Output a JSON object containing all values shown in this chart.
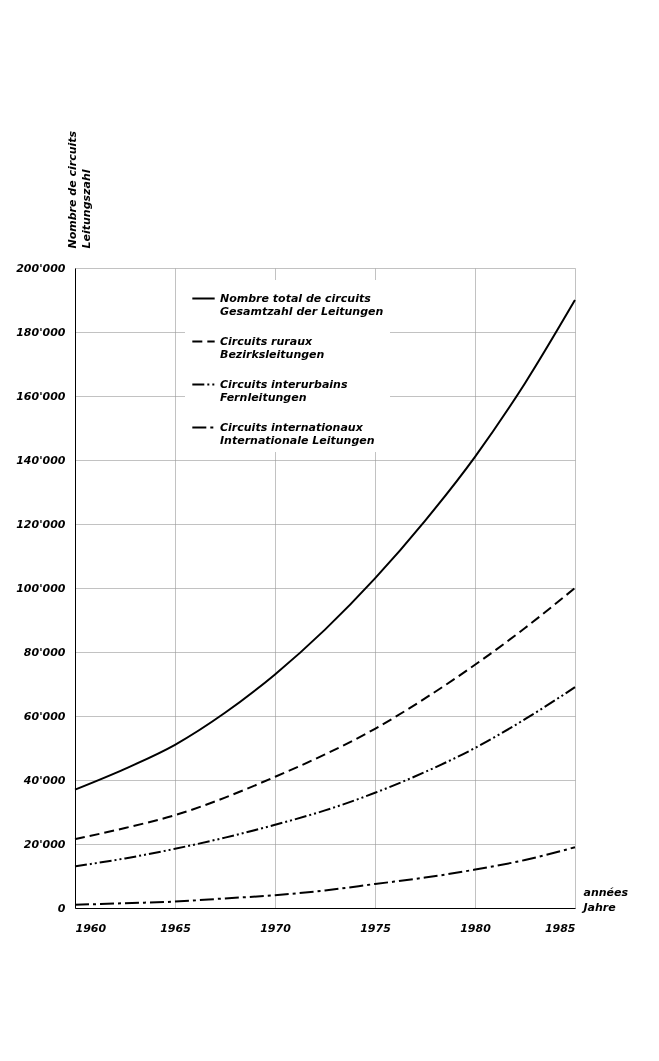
{
  "chart_data": {
    "type": "line",
    "xlabel": "années\nJahre",
    "ylabel": "Nombre de circuits\nLeitungszahl",
    "x": [
      1960,
      1962.5,
      1965,
      1967.5,
      1970,
      1972.5,
      1975,
      1977.5,
      1980,
      1982.5,
      1985
    ],
    "series": [
      {
        "name": "Nombre total de circuits\nGesamtzahl der Leitungen",
        "color": "#000000",
        "line_style": "solid",
        "values": [
          37000,
          43500,
          51000,
          61000,
          73000,
          87000,
          103000,
          121000,
          141000,
          164000,
          190000
        ]
      },
      {
        "name": "Circuits ruraux\nBezirksleitungen",
        "color": "#000000",
        "line_style": "dashed",
        "values": [
          21500,
          25000,
          29000,
          34500,
          41000,
          48000,
          56000,
          65500,
          76000,
          87500,
          100000
        ]
      },
      {
        "name": "Circuits interurbains\nFernleitungen",
        "color": "#000000",
        "line_style": "dashdotdot",
        "values": [
          13000,
          15500,
          18500,
          22000,
          26000,
          30500,
          36000,
          42500,
          50000,
          59000,
          69000
        ]
      },
      {
        "name": "Circuits internationaux\nInternationale Leitungen",
        "color": "#000000",
        "line_style": "dashdot",
        "values": [
          1000,
          1500,
          2000,
          3000,
          4000,
          5500,
          7500,
          9500,
          12000,
          15000,
          19000
        ]
      }
    ],
    "xlim": [
      1960,
      1985
    ],
    "xticks": [
      1960,
      1965,
      1970,
      1975,
      1980,
      1985
    ],
    "ylim": [
      0,
      200000
    ],
    "yticks": [
      0,
      {
        "value": 20000,
        "label": "20'000"
      },
      {
        "value": 40000,
        "label": "40'000"
      },
      {
        "value": 60000,
        "label": "60'000"
      },
      {
        "value": 80000,
        "label": "80'000"
      },
      {
        "value": 100000,
        "label": "100'000"
      },
      {
        "value": 120000,
        "label": "120'000"
      },
      {
        "value": 140000,
        "label": "140'000"
      },
      {
        "value": 160000,
        "label": "160'000"
      },
      {
        "value": 180000,
        "label": "180'000"
      },
      {
        "value": 200000,
        "label": "200'000"
      }
    ],
    "grid": true,
    "legend": "top",
    "marker": "none"
  }
}
